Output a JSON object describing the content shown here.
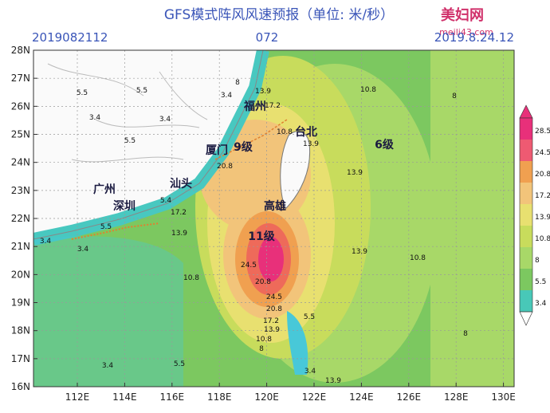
{
  "header": {
    "title": "GFS模式阵风风速预报（单位: 米/秒）",
    "watermark": "美妇网",
    "watermark_url": "meili43.com",
    "init_time": "2019082112",
    "forecast_hour": "072",
    "valid_time": "2019.8.24.12"
  },
  "map": {
    "lat_labels": [
      "28N",
      "27N",
      "26N",
      "25N",
      "24N",
      "23N",
      "22N",
      "21N",
      "20N",
      "19N",
      "18N",
      "17N",
      "16N"
    ],
    "lon_labels": [
      "112E",
      "114E",
      "116E",
      "118E",
      "120E",
      "122E",
      "124E",
      "126E",
      "128E",
      "130E"
    ],
    "place_labels": [
      "福州",
      "台北",
      "厦门",
      "9级",
      "汕头",
      "广州",
      "深圳",
      "高雄",
      "11级",
      "6级"
    ],
    "contour_labels": [
      "5.5",
      "5.5",
      "3.4",
      "3.4",
      "5.5",
      "8",
      "3.4",
      "13.9",
      "17.2",
      "10.8",
      "13.9",
      "20.8",
      "13.9",
      "17.2",
      "5.4",
      "13.9",
      "3.4",
      "5.5",
      "3.4",
      "10.8",
      "24.5",
      "20.8",
      "24.5",
      "20.8",
      "17.2",
      "13.9",
      "10.8",
      "8",
      "5.5",
      "3.4",
      "13.9",
      "3.4",
      "5.5",
      "13.9",
      "10.8",
      "10.8",
      "8",
      "8"
    ]
  },
  "colorbar": {
    "labels": [
      "28.5",
      "24.5",
      "20.8",
      "17.2",
      "13.9",
      "10.8",
      "8",
      "5.5",
      "3.4"
    ]
  }
}
